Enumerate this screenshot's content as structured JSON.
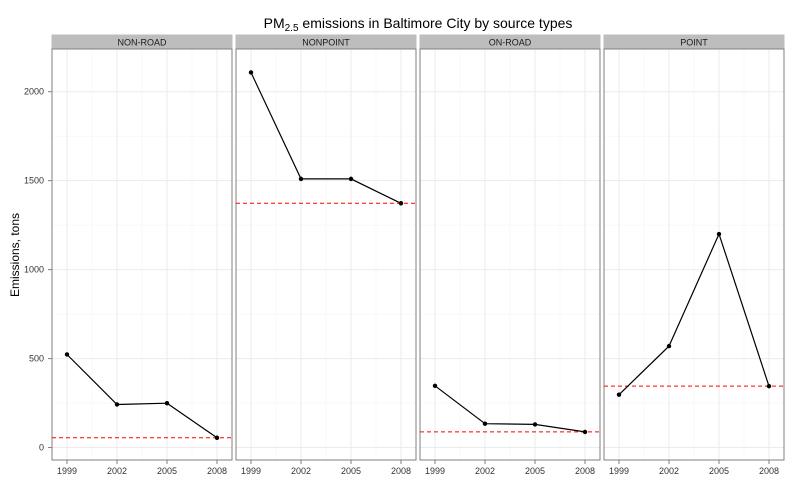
{
  "chart_data": {
    "type": "line",
    "title": "PM",
    "title_subscript": "2.5",
    "title_rest": " emissions in Baltimore City by source types",
    "ylabel": "Emissions, tons",
    "xlabel": "",
    "x": [
      "1999",
      "2002",
      "2005",
      "2008"
    ],
    "ylim": [
      -70,
      2240
    ],
    "yticks": [
      0,
      500,
      1000,
      1500,
      2000
    ],
    "grid": true,
    "colors": {
      "line": "#000000",
      "point": "#000000",
      "reference_line": "#ff0000",
      "strip": "#bdbdbd",
      "gridline": "#ebebeb",
      "panel_border": "#7f7f7f"
    },
    "panels": [
      {
        "name": "NON-ROAD",
        "values": [
          523,
          242,
          249,
          55
        ],
        "reference_line": 55
      },
      {
        "name": "NONPOINT",
        "values": [
          2108,
          1510,
          1510,
          1373
        ],
        "reference_line": 1373
      },
      {
        "name": "ON-ROAD",
        "values": [
          347,
          134,
          130,
          88
        ],
        "reference_line": 88
      },
      {
        "name": "POINT",
        "values": [
          297,
          570,
          1200,
          345
        ],
        "reference_line": 345
      }
    ]
  }
}
